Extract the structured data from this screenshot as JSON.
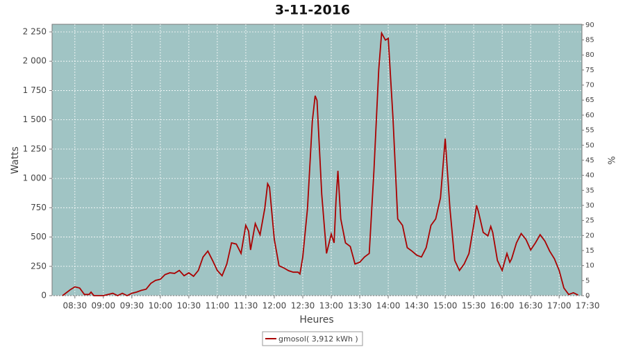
{
  "chart_data": {
    "type": "line",
    "title": "3-11-2016",
    "x_label": "Heures",
    "y_label": "Watts",
    "y2_label": "%",
    "xlim": [
      "08:06",
      "17:24"
    ],
    "xticks": [
      "08:30",
      "09:00",
      "09:30",
      "10:00",
      "10:30",
      "11:00",
      "11:30",
      "12:00",
      "12:30",
      "13:00",
      "13:30",
      "14:00",
      "14:30",
      "15:00",
      "15:30",
      "16:00",
      "16:30",
      "17:00",
      "17:30"
    ],
    "ylim": [
      0,
      2315
    ],
    "yticks": [
      0,
      250,
      500,
      750,
      {
        "value": 1000,
        "label": "1 000"
      },
      {
        "value": 1250,
        "label": "1 250"
      },
      {
        "value": 1500,
        "label": "1 500"
      },
      {
        "value": 1750,
        "label": "1 750"
      },
      {
        "value": 2000,
        "label": "2 000"
      },
      {
        "value": 2250,
        "label": "2 250"
      }
    ],
    "y2lim": [
      0,
      90.2
    ],
    "y2ticks": [
      0,
      5,
      10,
      15,
      20,
      25,
      30,
      35,
      40,
      45,
      50,
      55,
      60,
      65,
      70,
      75,
      80,
      85,
      90
    ],
    "grid": true,
    "legend": "bottom",
    "x": [
      "08:17",
      "08:25",
      "08:30",
      "08:35",
      "08:40",
      "08:45",
      "08:47",
      "08:50",
      "09:00",
      "09:10",
      "09:15",
      "09:20",
      "09:25",
      "09:30",
      "09:35",
      "09:40",
      "09:45",
      "09:50",
      "09:55",
      "10:00",
      "10:05",
      "10:10",
      "10:15",
      "10:20",
      "10:25",
      "10:30",
      "10:35",
      "10:40",
      "10:45",
      "10:50",
      "10:55",
      "11:00",
      "11:05",
      "11:10",
      "11:15",
      "11:20",
      "11:25",
      "11:30",
      "11:33",
      "11:35",
      "11:40",
      "11:45",
      "11:50",
      "11:53",
      "11:55",
      "12:00",
      "12:05",
      "12:10",
      "12:15",
      "12:20",
      "12:25",
      "12:27",
      "12:30",
      "12:35",
      "12:40",
      "12:43",
      "12:45",
      "12:50",
      "12:55",
      "13:00",
      "13:03",
      "13:05",
      "13:07",
      "13:10",
      "13:15",
      "13:20",
      "13:25",
      "13:30",
      "13:35",
      "13:40",
      "13:45",
      "13:50",
      "13:53",
      "13:57",
      "14:00",
      "14:05",
      "14:10",
      "14:15",
      "14:20",
      "14:25",
      "14:30",
      "14:35",
      "14:40",
      "14:45",
      "14:50",
      "14:55",
      "15:00",
      "15:05",
      "15:10",
      "15:15",
      "15:20",
      "15:25",
      "15:30",
      "15:33",
      "15:35",
      "15:40",
      "15:45",
      "15:48",
      "15:50",
      "15:55",
      "16:00",
      "16:05",
      "16:08",
      "16:10",
      "16:15",
      "16:20",
      "16:25",
      "16:30",
      "16:35",
      "16:40",
      "16:45",
      "16:50",
      "16:55",
      "17:00",
      "17:05",
      "17:10",
      "17:15",
      "17:20"
    ],
    "series": [
      {
        "name": "gmosol( 3,912 kWh )",
        "color": "#aa0000",
        "values": [
          0,
          50,
          75,
          65,
          10,
          10,
          30,
          0,
          0,
          20,
          0,
          20,
          0,
          20,
          30,
          45,
          55,
          105,
          130,
          140,
          180,
          195,
          190,
          215,
          170,
          195,
          165,
          215,
          330,
          380,
          300,
          215,
          170,
          270,
          450,
          440,
          360,
          600,
          550,
          390,
          615,
          520,
          745,
          955,
          925,
          480,
          255,
          237,
          213,
          200,
          200,
          185,
          330,
          745,
          1485,
          1705,
          1665,
          865,
          360,
          525,
          450,
          805,
          1065,
          655,
          450,
          420,
          270,
          285,
          330,
          360,
          1070,
          1930,
          2240,
          2180,
          2195,
          1515,
          655,
          600,
          410,
          380,
          345,
          330,
          410,
          600,
          655,
          835,
          1340,
          745,
          300,
          215,
          270,
          360,
          600,
          770,
          715,
          540,
          510,
          590,
          540,
          300,
          215,
          360,
          285,
          315,
          450,
          530,
          480,
          390,
          450,
          520,
          465,
          380,
          315,
          215,
          65,
          10,
          25,
          5
        ]
      }
    ]
  }
}
